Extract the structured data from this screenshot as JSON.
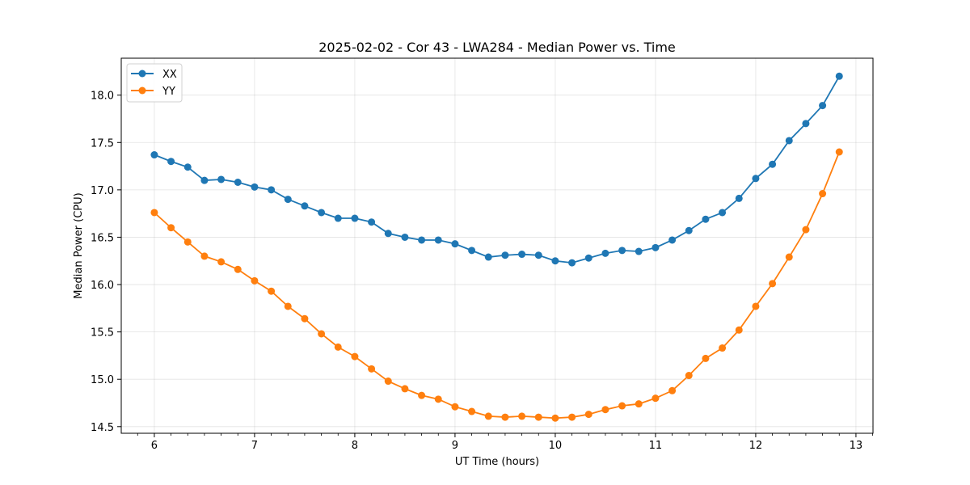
{
  "chart_data": {
    "type": "line",
    "title": "2025-02-02 - Cor 43 - LWA284 - Median Power vs. Time",
    "xlabel": "UT Time (hours)",
    "ylabel": "Median Power (CPU)",
    "xlim": [
      5.67,
      13.17
    ],
    "ylim": [
      14.43,
      18.39
    ],
    "xticks": [
      6,
      7,
      8,
      9,
      10,
      11,
      12,
      13
    ],
    "xtick_labels": [
      "6",
      "7",
      "8",
      "9",
      "10",
      "11",
      "12",
      "13"
    ],
    "yticks": [
      14.5,
      15.0,
      15.5,
      16.0,
      16.5,
      17.0,
      17.5,
      18.0
    ],
    "ytick_labels": [
      "14.5",
      "15.0",
      "15.5",
      "16.0",
      "16.5",
      "17.0",
      "17.5",
      "18.0"
    ],
    "grid": true,
    "legend_position": "top-left",
    "x": [
      6.0,
      6.1667,
      6.3333,
      6.5,
      6.6667,
      6.8333,
      7.0,
      7.1667,
      7.3333,
      7.5,
      7.6667,
      7.8333,
      8.0,
      8.1667,
      8.3333,
      8.5,
      8.6667,
      8.8333,
      9.0,
      9.1667,
      9.3333,
      9.5,
      9.6667,
      9.8333,
      10.0,
      10.1667,
      10.3333,
      10.5,
      10.6667,
      10.8333,
      11.0,
      11.1667,
      11.3333,
      11.5,
      11.6667,
      11.8333,
      12.0,
      12.1667,
      12.3333,
      12.5,
      12.6667,
      12.8333
    ],
    "series": [
      {
        "name": "XX",
        "color": "#1f77b4",
        "values": [
          17.37,
          17.3,
          17.24,
          17.1,
          17.11,
          17.08,
          17.03,
          17.0,
          16.9,
          16.83,
          16.76,
          16.7,
          16.7,
          16.66,
          16.54,
          16.5,
          16.47,
          16.47,
          16.43,
          16.36,
          16.29,
          16.31,
          16.32,
          16.31,
          16.25,
          16.23,
          16.28,
          16.33,
          16.36,
          16.35,
          16.39,
          16.47,
          16.57,
          16.69,
          16.76,
          16.91,
          17.12,
          17.27,
          17.52,
          17.7,
          17.89,
          18.2
        ]
      },
      {
        "name": "YY",
        "color": "#ff7f0e",
        "values": [
          16.76,
          16.6,
          16.45,
          16.3,
          16.24,
          16.16,
          16.04,
          15.93,
          15.77,
          15.64,
          15.48,
          15.34,
          15.24,
          15.11,
          14.98,
          14.9,
          14.83,
          14.79,
          14.71,
          14.66,
          14.61,
          14.6,
          14.61,
          14.6,
          14.59,
          14.6,
          14.63,
          14.68,
          14.72,
          14.74,
          14.8,
          14.88,
          15.04,
          15.22,
          15.33,
          15.52,
          15.77,
          16.01,
          16.29,
          16.58,
          16.96,
          17.4
        ]
      }
    ]
  }
}
